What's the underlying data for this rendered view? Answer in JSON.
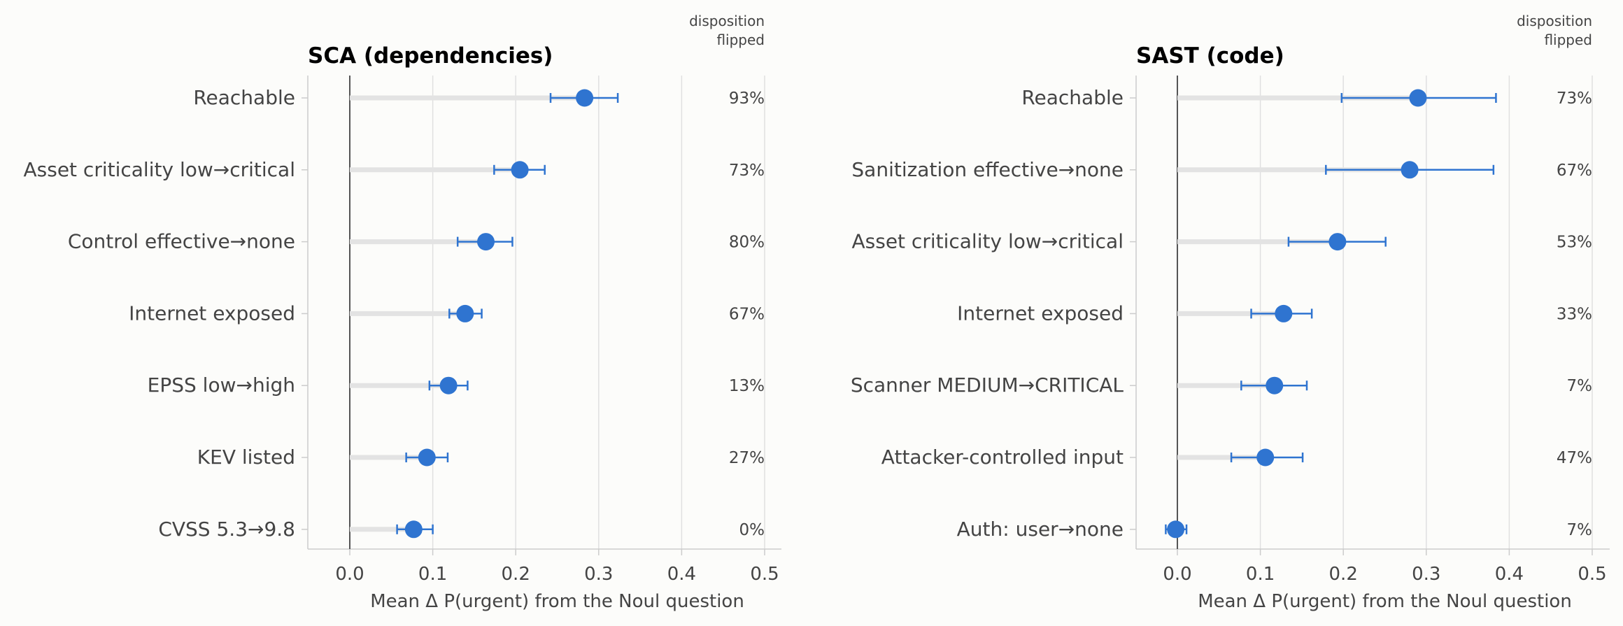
{
  "chart_data": [
    {
      "type": "scatter",
      "title": "SCA (dependencies)",
      "xlabel": "Mean Δ P(urgent) from the Noul question",
      "ylabel": "",
      "xlim": [
        -0.05,
        0.52
      ],
      "xticks": [
        0.0,
        0.1,
        0.2,
        0.3,
        0.4,
        0.5
      ],
      "xtick_labels": [
        "0.0",
        "0.1",
        "0.2",
        "0.3",
        "0.4",
        "0.5"
      ],
      "grid": true,
      "flip_header": [
        "disposition",
        "flipped"
      ],
      "rows": [
        {
          "label": "Reachable",
          "mean": 0.283,
          "ci_low": 0.242,
          "ci_high": 0.323,
          "flipped": "93%"
        },
        {
          "label": "Asset criticality low→critical",
          "mean": 0.205,
          "ci_low": 0.174,
          "ci_high": 0.235,
          "flipped": "73%"
        },
        {
          "label": "Control effective→none",
          "mean": 0.164,
          "ci_low": 0.13,
          "ci_high": 0.196,
          "flipped": "80%"
        },
        {
          "label": "Internet exposed",
          "mean": 0.139,
          "ci_low": 0.12,
          "ci_high": 0.159,
          "flipped": "67%"
        },
        {
          "label": "EPSS low→high",
          "mean": 0.119,
          "ci_low": 0.096,
          "ci_high": 0.142,
          "flipped": "13%"
        },
        {
          "label": "KEV listed",
          "mean": 0.093,
          "ci_low": 0.068,
          "ci_high": 0.118,
          "flipped": "27%"
        },
        {
          "label": "CVSS 5.3→9.8",
          "mean": 0.077,
          "ci_low": 0.057,
          "ci_high": 0.1,
          "flipped": "0%"
        }
      ]
    },
    {
      "type": "scatter",
      "title": "SAST (code)",
      "xlabel": "Mean Δ P(urgent) from the Noul question",
      "ylabel": "",
      "xlim": [
        -0.05,
        0.52
      ],
      "xticks": [
        0.0,
        0.1,
        0.2,
        0.3,
        0.4,
        0.5
      ],
      "xtick_labels": [
        "0.0",
        "0.1",
        "0.2",
        "0.3",
        "0.4",
        "0.5"
      ],
      "grid": true,
      "flip_header": [
        "disposition",
        "flipped"
      ],
      "rows": [
        {
          "label": "Reachable",
          "mean": 0.29,
          "ci_low": 0.198,
          "ci_high": 0.384,
          "flipped": "73%"
        },
        {
          "label": "Sanitization effective→none",
          "mean": 0.28,
          "ci_low": 0.179,
          "ci_high": 0.381,
          "flipped": "67%"
        },
        {
          "label": "Asset criticality low→critical",
          "mean": 0.193,
          "ci_low": 0.134,
          "ci_high": 0.251,
          "flipped": "53%"
        },
        {
          "label": "Internet exposed",
          "mean": 0.128,
          "ci_low": 0.089,
          "ci_high": 0.162,
          "flipped": "33%"
        },
        {
          "label": "Scanner MEDIUM→CRITICAL",
          "mean": 0.117,
          "ci_low": 0.077,
          "ci_high": 0.156,
          "flipped": "7%"
        },
        {
          "label": "Attacker-controlled input",
          "mean": 0.106,
          "ci_low": 0.065,
          "ci_high": 0.151,
          "flipped": "47%"
        },
        {
          "label": "Auth: user→none",
          "mean": -0.002,
          "ci_low": -0.014,
          "ci_high": 0.011,
          "flipped": "7%"
        }
      ]
    }
  ],
  "colors": {
    "point": "#2f74d0",
    "bar_track": "#e3e3e3",
    "grid": "#e0e0e0",
    "zero_line": "#555555",
    "spine": "#cccccc",
    "text": "#444444",
    "title": "#000000"
  }
}
